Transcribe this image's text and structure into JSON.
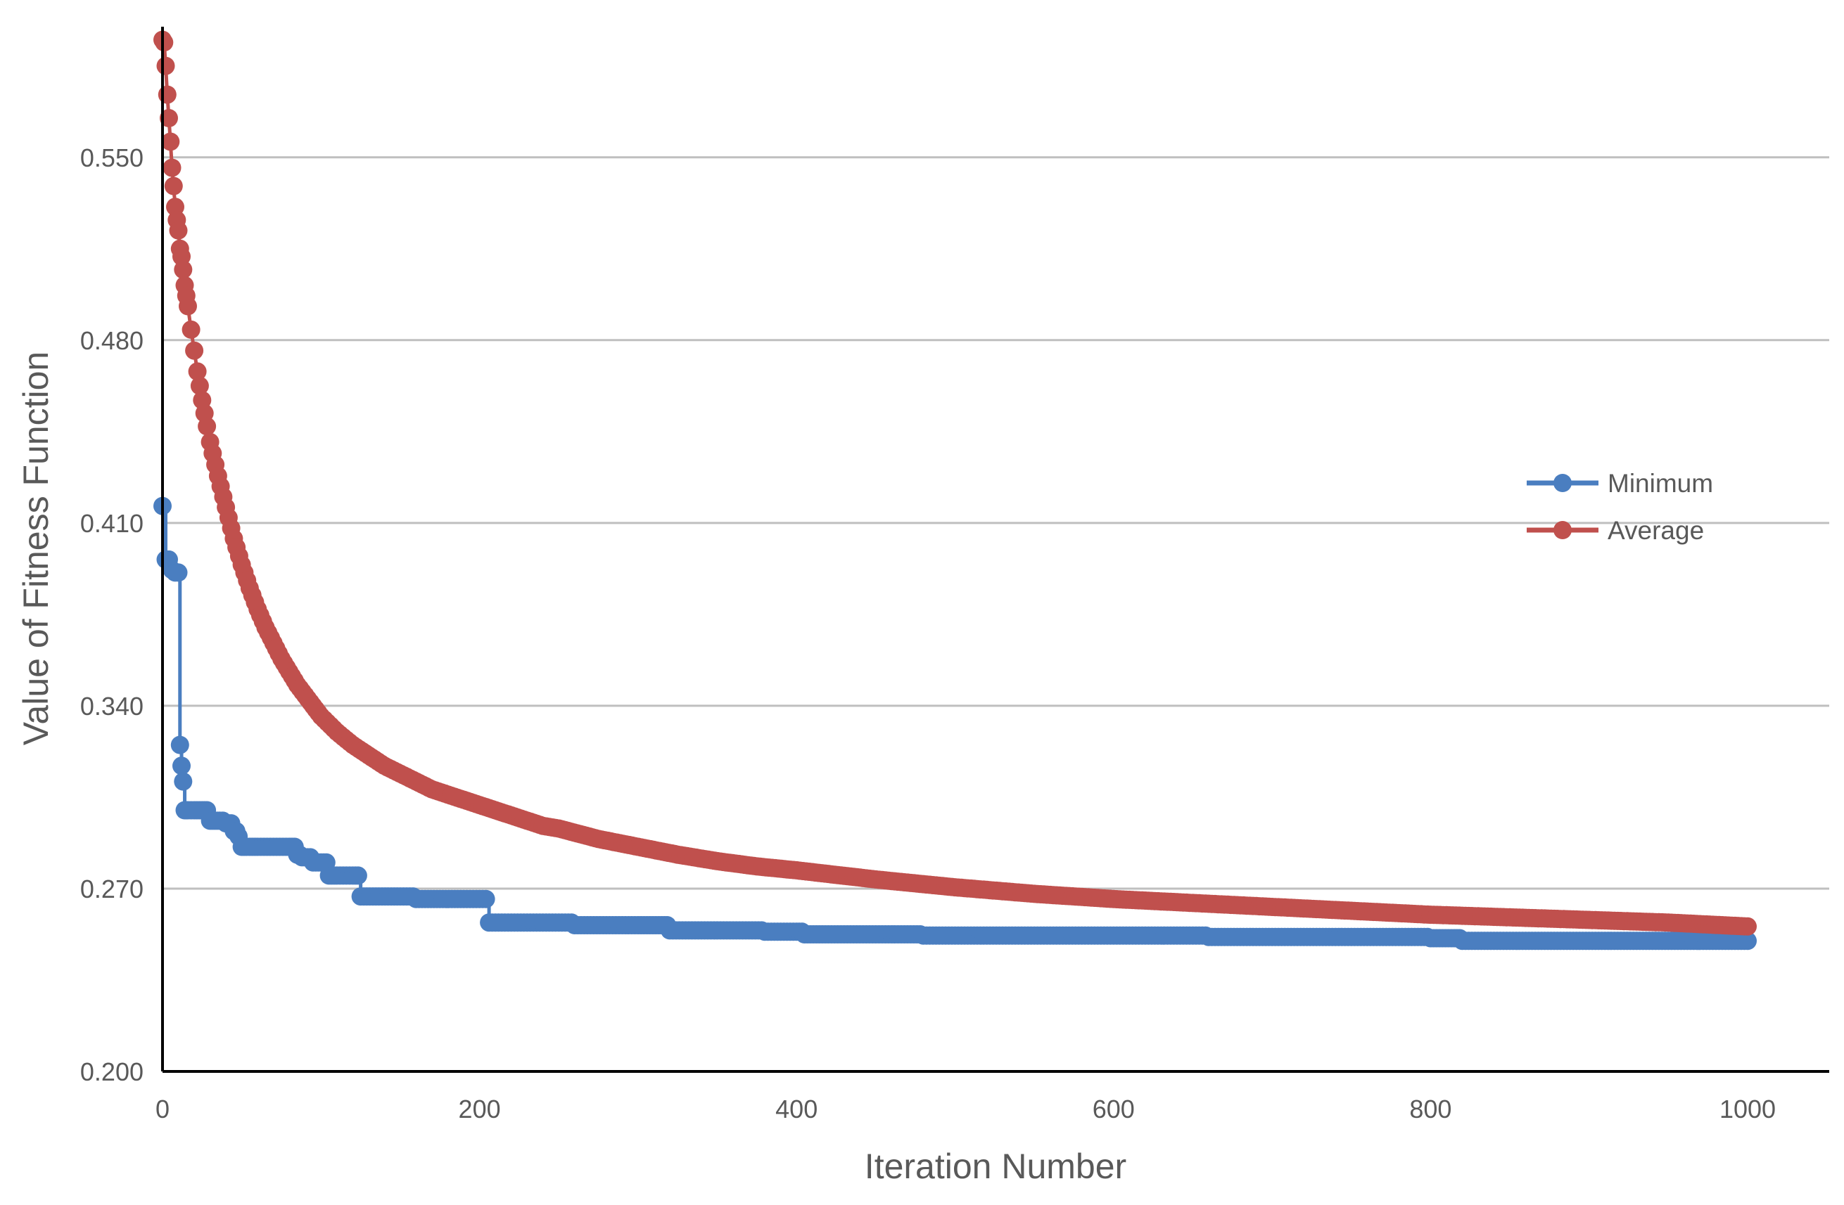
{
  "chart_data": {
    "type": "line",
    "title": "",
    "xlabel": "Iteration Number",
    "ylabel": "Value of Fitness Function",
    "xlim": [
      0,
      1000
    ],
    "ylim": [
      0.2,
      0.6
    ],
    "xticks": [
      "0",
      "200",
      "400",
      "600",
      "800",
      "1000"
    ],
    "xtick_values": [
      0,
      200,
      400,
      600,
      800,
      1000
    ],
    "yticks": [
      "0.200",
      "0.270",
      "0.340",
      "0.410",
      "0.480",
      "0.550"
    ],
    "ytick_values": [
      0.2,
      0.27,
      0.34,
      0.41,
      0.48,
      0.55
    ],
    "grid": "horizontal",
    "legend": "right",
    "markers": "circle",
    "series": [
      {
        "name": "Minimum",
        "color": "#4A7EC0",
        "x": [
          0,
          2,
          4,
          6,
          8,
          10,
          11,
          12,
          13,
          14,
          15,
          16,
          20,
          25,
          28,
          30,
          33,
          36,
          40,
          45,
          48,
          50,
          53,
          55,
          60,
          70,
          80,
          85,
          88,
          95,
          100,
          105,
          110,
          120,
          125,
          150,
          160,
          175,
          190,
          200,
          204,
          206,
          210,
          220,
          240,
          250,
          260,
          280,
          300,
          315,
          320,
          330,
          350,
          380,
          400,
          405,
          420,
          450,
          480,
          500,
          550,
          600,
          650,
          660,
          700,
          750,
          770,
          800,
          815,
          820,
          850,
          900,
          950,
          1000
        ],
        "y": [
          0.4165,
          0.396,
          0.396,
          0.392,
          0.391,
          0.391,
          0.325,
          0.317,
          0.311,
          0.3,
          0.3,
          0.3,
          0.3,
          0.3,
          0.3,
          0.296,
          0.296,
          0.296,
          0.295,
          0.292,
          0.29,
          0.286,
          0.286,
          0.286,
          0.286,
          0.286,
          0.286,
          0.283,
          0.282,
          0.28,
          0.28,
          0.275,
          0.275,
          0.275,
          0.267,
          0.267,
          0.266,
          0.266,
          0.266,
          0.266,
          0.266,
          0.257,
          0.257,
          0.257,
          0.257,
          0.257,
          0.256,
          0.256,
          0.256,
          0.256,
          0.254,
          0.254,
          0.254,
          0.2535,
          0.2535,
          0.2525,
          0.2525,
          0.2525,
          0.252,
          0.252,
          0.252,
          0.252,
          0.252,
          0.2515,
          0.2515,
          0.2515,
          0.2515,
          0.251,
          0.251,
          0.25,
          0.25,
          0.25,
          0.25,
          0.25
        ]
      },
      {
        "name": "Average",
        "color": "#C0504D",
        "x": [
          0,
          1,
          2,
          3,
          4,
          5,
          6,
          7,
          8,
          9,
          10,
          11,
          12,
          13,
          14,
          15,
          16,
          18,
          20,
          22,
          25,
          28,
          30,
          35,
          40,
          45,
          50,
          55,
          60,
          65,
          70,
          75,
          80,
          85,
          90,
          95,
          100,
          110,
          120,
          130,
          140,
          150,
          160,
          170,
          180,
          190,
          200,
          210,
          220,
          230,
          240,
          250,
          275,
          300,
          325,
          350,
          375,
          400,
          450,
          500,
          550,
          600,
          650,
          700,
          750,
          800,
          850,
          900,
          950,
          1000
        ],
        "y": [
          0.595,
          0.594,
          0.585,
          0.574,
          0.565,
          0.556,
          0.546,
          0.539,
          0.531,
          0.526,
          0.522,
          0.515,
          0.512,
          0.507,
          0.501,
          0.497,
          0.493,
          0.484,
          0.476,
          0.468,
          0.457,
          0.447,
          0.441,
          0.428,
          0.416,
          0.404,
          0.394,
          0.385,
          0.377,
          0.37,
          0.364,
          0.358,
          0.353,
          0.348,
          0.344,
          0.34,
          0.336,
          0.33,
          0.325,
          0.321,
          0.317,
          0.314,
          0.311,
          0.308,
          0.306,
          0.304,
          0.302,
          0.3,
          0.298,
          0.296,
          0.294,
          0.293,
          0.289,
          0.286,
          0.283,
          0.2805,
          0.2785,
          0.277,
          0.2735,
          0.2705,
          0.268,
          0.266,
          0.2645,
          0.263,
          0.2615,
          0.26,
          0.259,
          0.258,
          0.257,
          0.2555
        ]
      }
    ]
  }
}
